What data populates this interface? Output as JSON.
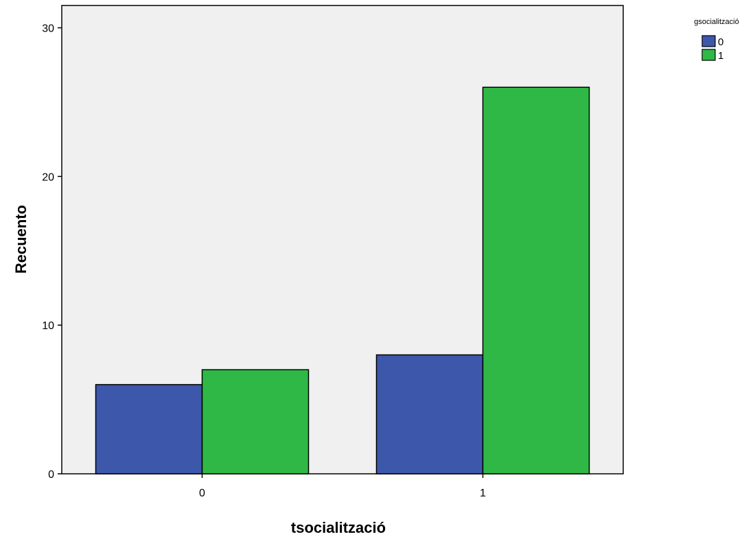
{
  "chart_data": {
    "type": "bar",
    "xlabel": "tsocialització",
    "ylabel": "Recuento",
    "categories": [
      "0",
      "1"
    ],
    "series": [
      {
        "name": "0",
        "values": [
          6,
          8
        ],
        "color": "#3d57aa"
      },
      {
        "name": "1",
        "values": [
          7,
          26
        ],
        "color": "#2fb846"
      }
    ],
    "ylim": [
      0,
      31.5
    ],
    "yticks": [
      0,
      10,
      20,
      30
    ],
    "grid": false,
    "plot_background": "#f0f0f0",
    "legend": {
      "title": "gsocialització",
      "placement": "top-right, outside plot"
    }
  }
}
